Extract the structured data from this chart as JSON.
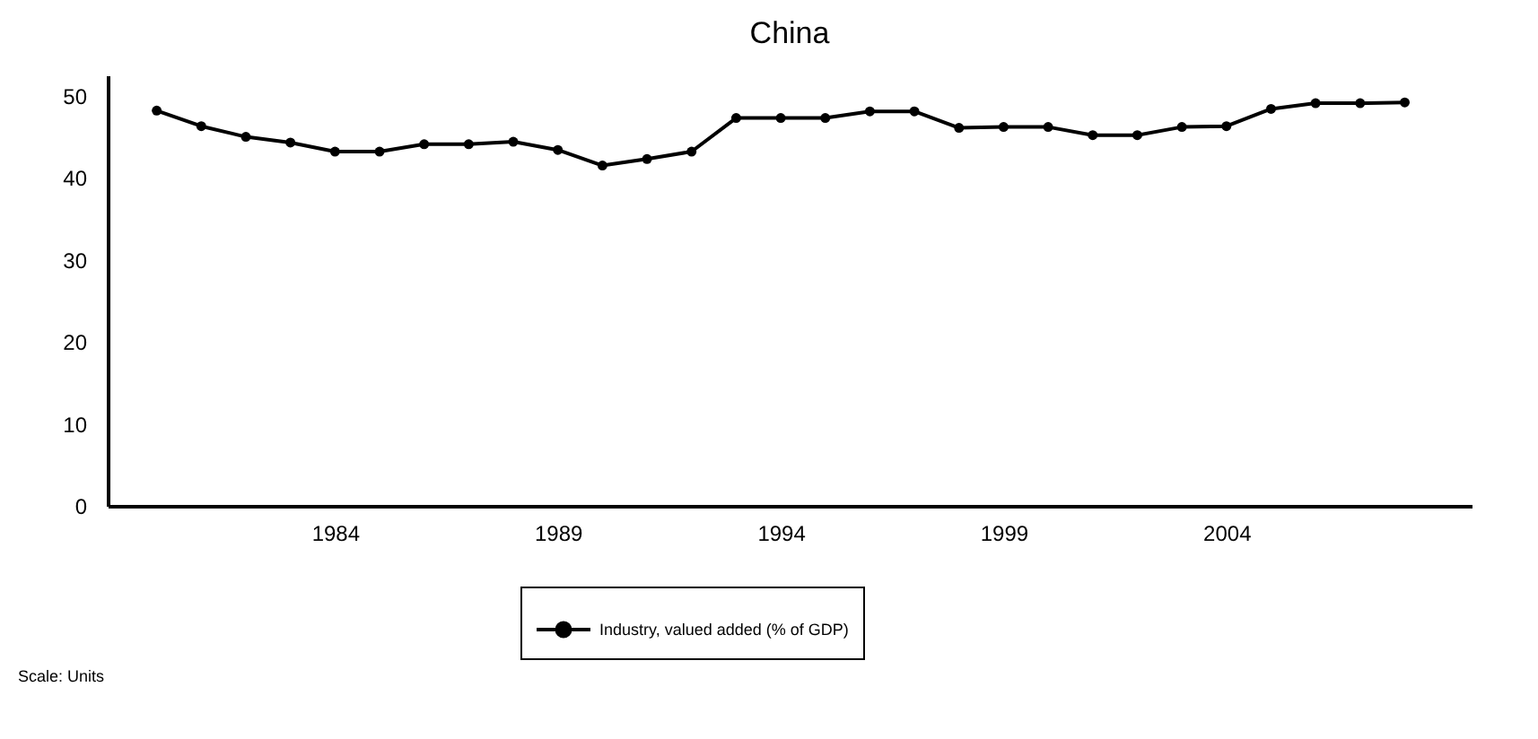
{
  "chart_data": {
    "type": "line",
    "title": "China",
    "x": [
      1980,
      1981,
      1982,
      1983,
      1984,
      1985,
      1986,
      1987,
      1988,
      1989,
      1990,
      1991,
      1992,
      1993,
      1994,
      1995,
      1996,
      1997,
      1998,
      1999,
      2000,
      2001,
      2002,
      2003,
      2004,
      2005,
      2006,
      2007,
      2008
    ],
    "series": [
      {
        "name": "Industry, valued added (% of GDP)",
        "color": "#000000",
        "values": [
          48.2,
          46.3,
          45.0,
          44.3,
          43.2,
          43.2,
          44.1,
          44.1,
          44.4,
          43.4,
          41.5,
          42.3,
          43.2,
          47.3,
          47.3,
          47.3,
          48.1,
          48.1,
          46.1,
          46.2,
          46.2,
          45.2,
          45.2,
          46.2,
          46.3,
          48.4,
          49.1,
          49.1,
          49.2
        ]
      }
    ],
    "xlim": [
      1978.9,
      2009.5
    ],
    "xticks": [
      1984,
      1989,
      1994,
      1999,
      2004
    ],
    "ylim": [
      0,
      52.5
    ],
    "yticks": [
      0,
      10,
      20,
      30,
      40,
      50
    ],
    "grid": false,
    "legend": "bottom",
    "marker": "circle",
    "line_style": "solid",
    "annotations": [
      "Scale: Units"
    ]
  }
}
